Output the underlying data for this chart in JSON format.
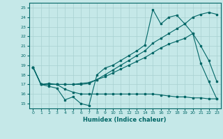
{
  "xlabel": "Humidex (Indice chaleur)",
  "bg_color": "#c5e8e8",
  "grid_color": "#a8d0d0",
  "line_color": "#006666",
  "xlim": [
    -0.5,
    23.5
  ],
  "ylim": [
    14.5,
    25.5
  ],
  "xticks": [
    0,
    1,
    2,
    3,
    4,
    5,
    6,
    7,
    8,
    9,
    10,
    11,
    12,
    13,
    14,
    15,
    16,
    17,
    18,
    19,
    20,
    21,
    22,
    23
  ],
  "yticks": [
    15,
    16,
    17,
    18,
    19,
    20,
    21,
    22,
    23,
    24,
    25
  ],
  "line1_x": [
    0,
    1,
    2,
    3,
    4,
    5,
    6,
    7,
    8,
    9,
    10,
    11,
    12,
    13,
    14,
    15,
    16,
    17,
    18,
    19,
    20,
    21,
    22,
    23
  ],
  "line1_y": [
    18.8,
    17.0,
    16.8,
    16.6,
    15.4,
    15.7,
    15.0,
    14.8,
    18.0,
    18.7,
    19.0,
    19.5,
    20.0,
    20.5,
    21.1,
    24.8,
    23.3,
    24.0,
    24.2,
    23.3,
    22.3,
    19.2,
    17.3,
    15.5
  ],
  "line2_x": [
    0,
    1,
    2,
    3,
    4,
    5,
    6,
    7,
    8,
    9,
    10,
    11,
    12,
    13,
    14,
    15,
    16,
    17,
    18,
    19,
    20,
    21,
    22,
    23
  ],
  "line2_y": [
    18.8,
    17.0,
    17.1,
    17.0,
    16.5,
    16.2,
    16.0,
    16.0,
    16.0,
    16.0,
    16.0,
    16.0,
    16.0,
    16.0,
    16.0,
    16.0,
    15.9,
    15.8,
    15.7,
    15.7,
    15.6,
    15.6,
    15.5,
    15.5
  ],
  "line3_x": [
    0,
    1,
    2,
    3,
    4,
    5,
    6,
    7,
    8,
    9,
    10,
    11,
    12,
    13,
    14,
    15,
    16,
    17,
    18,
    19,
    20,
    21,
    22,
    23
  ],
  "line3_y": [
    18.8,
    17.0,
    17.0,
    17.0,
    17.0,
    17.0,
    17.1,
    17.2,
    17.5,
    17.8,
    18.2,
    18.6,
    19.0,
    19.4,
    19.8,
    20.3,
    20.8,
    21.2,
    21.5,
    21.8,
    22.3,
    21.0,
    19.5,
    17.3
  ],
  "line4_x": [
    0,
    1,
    2,
    3,
    4,
    5,
    6,
    7,
    8,
    9,
    10,
    11,
    12,
    13,
    14,
    15,
    16,
    17,
    18,
    19,
    20,
    21,
    22,
    23
  ],
  "line4_y": [
    18.8,
    17.0,
    17.0,
    17.0,
    17.0,
    17.0,
    17.0,
    17.1,
    17.5,
    18.0,
    18.5,
    19.0,
    19.5,
    20.0,
    20.5,
    21.3,
    21.8,
    22.3,
    22.8,
    23.3,
    24.0,
    24.3,
    24.5,
    24.3
  ]
}
